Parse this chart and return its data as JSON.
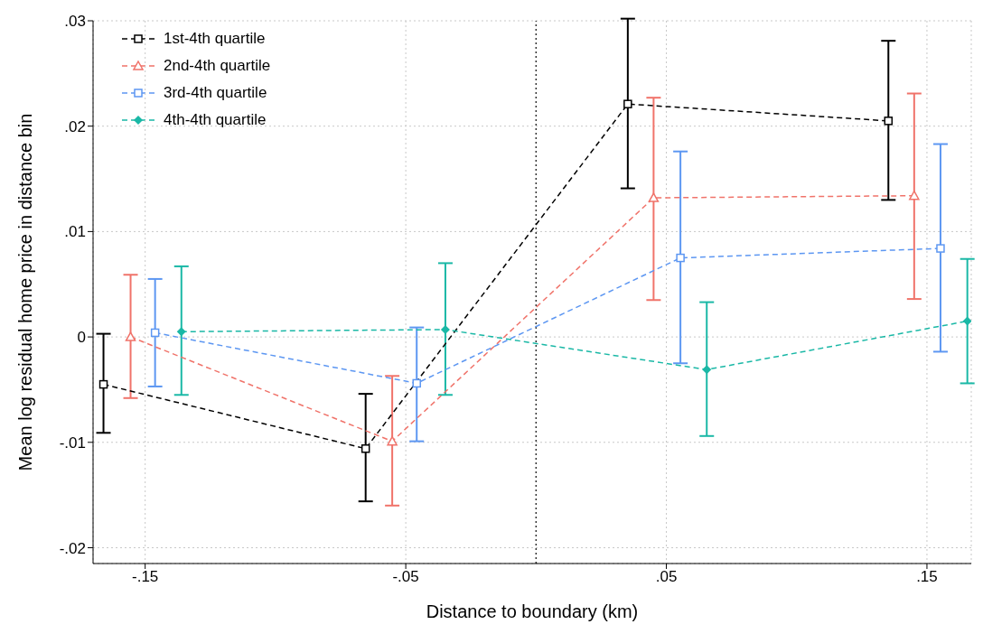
{
  "chart_data": {
    "type": "line",
    "xlabel": "Distance to boundary (km)",
    "ylabel": "Mean log residual home price in distance bin",
    "xlim": [
      -0.17,
      0.167
    ],
    "xticks": [
      {
        "value": -0.15,
        "label": "-.15"
      },
      {
        "value": -0.05,
        "label": "-.05"
      },
      {
        "value": 0.05,
        "label": ".05"
      },
      {
        "value": 0.15,
        "label": ".15"
      }
    ],
    "ylim": [
      -0.0215,
      0.03
    ],
    "yticks": [
      {
        "value": -0.02,
        "label": "-.02"
      },
      {
        "value": -0.01,
        "label": "-.01"
      },
      0,
      {
        "value": 0.01,
        "label": ".01"
      },
      {
        "value": 0.02,
        "label": ".02"
      },
      {
        "value": 0.03,
        "label": ".03"
      }
    ],
    "grid": true,
    "legend": "top left",
    "line_style": "dashed",
    "ref_lines": [
      {
        "axis": "x",
        "value": 0,
        "color": "#333333",
        "line_style": "dotted"
      }
    ],
    "series": [
      {
        "name": "1st-4th quartile",
        "color": "#000000",
        "marker": "square",
        "x": [
          -0.166,
          -0.0654,
          0.0352,
          0.1352
        ],
        "values": [
          -0.0045,
          -0.0106,
          0.0221,
          0.0205
        ],
        "errors": [
          [
            -0.0091,
            0.0003
          ],
          [
            -0.0156,
            -0.0054
          ],
          [
            0.0141,
            0.0302
          ],
          [
            0.013,
            0.0281
          ]
        ]
      },
      {
        "name": "2nd-4th quartile",
        "color": "#f0736a",
        "marker": "triangle",
        "x": [
          -0.1556,
          -0.0552,
          0.0451,
          0.1451
        ],
        "values": [
          0.0,
          -0.0099,
          0.0132,
          0.0134
        ],
        "errors": [
          [
            -0.0058,
            0.0059
          ],
          [
            -0.016,
            -0.0037
          ],
          [
            0.0035,
            0.0227
          ],
          [
            0.0036,
            0.0231
          ]
        ]
      },
      {
        "name": "3rd-4th quartile",
        "color": "#5d97f2",
        "marker": "square",
        "x": [
          -0.1462,
          -0.0458,
          0.0554,
          0.1552
        ],
        "values": [
          0.0004,
          -0.0044,
          0.0075,
          0.0084
        ],
        "errors": [
          [
            -0.0047,
            0.0055
          ],
          [
            -0.0099,
            0.0009
          ],
          [
            -0.0025,
            0.0176
          ],
          [
            -0.0014,
            0.0183
          ]
        ]
      },
      {
        "name": "4th-4th quartile",
        "color": "#1ab8a6",
        "marker": "diamond",
        "x": [
          -0.1361,
          -0.0348,
          0.0655,
          0.1655
        ],
        "values": [
          0.0005,
          0.0007,
          -0.0031,
          0.0015
        ],
        "errors": [
          [
            -0.0055,
            0.0067
          ],
          [
            -0.0055,
            0.007
          ],
          [
            -0.0094,
            0.0033
          ],
          [
            -0.0044,
            0.0074
          ]
        ]
      }
    ]
  }
}
